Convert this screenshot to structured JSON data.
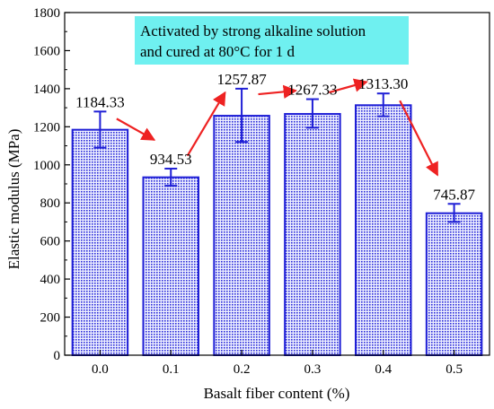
{
  "chart_data": {
    "type": "bar",
    "xlabel": "Basalt fiber content (%)",
    "ylabel": "Elastic modulus (MPa)",
    "categories": [
      "0.0",
      "0.1",
      "0.2",
      "0.3",
      "0.4",
      "0.5"
    ],
    "values": [
      1184.33,
      934.53,
      1257.87,
      1267.33,
      1313.3,
      745.87
    ],
    "value_labels": [
      "1184.33",
      "934.53",
      "1257.87",
      "1267.33",
      "1313.30",
      "745.87"
    ],
    "error_low": [
      1090,
      890,
      1120,
      1195,
      1255,
      700
    ],
    "error_high": [
      1280,
      980,
      1400,
      1345,
      1375,
      795
    ],
    "ylim": [
      0,
      1800
    ],
    "yticks": [
      0,
      200,
      400,
      600,
      800,
      1000,
      1200,
      1400,
      1600,
      1800
    ],
    "ytick_labels": [
      "0",
      "200",
      "400",
      "600",
      "800",
      "1000",
      "1200",
      "1400",
      "1600",
      "1800"
    ],
    "annotation": [
      "Activated by strong alkaline solution",
      "and cured at 80°C for 1 d"
    ],
    "grid": false,
    "legend": "none",
    "colors": {
      "bar_edge": "#1f1fd6",
      "bar_hatch": "#2b2bd9",
      "bar_fill": "#eef0ff",
      "error_bar": "#1f1fd6",
      "arrow": "#ee2222",
      "annotation_bg": "#6ff0f0"
    }
  }
}
